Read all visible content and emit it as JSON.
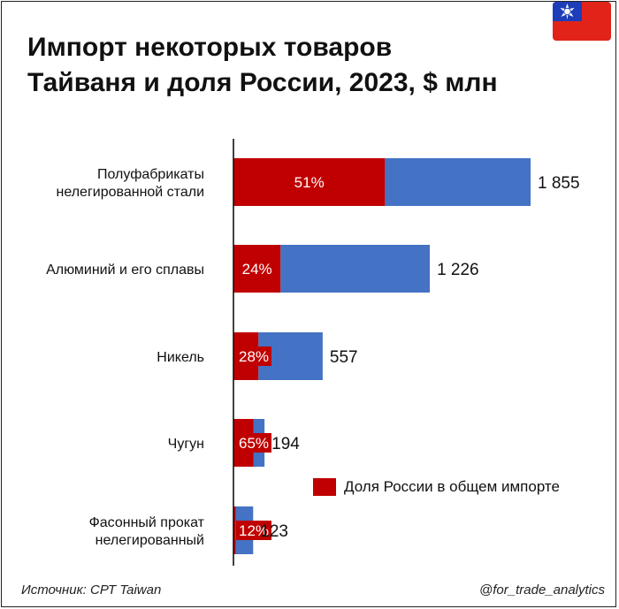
{
  "header": {
    "title_line1": "Импорт некоторых товаров",
    "title_line2": "Тайваня и доля России, 2023, $ млн"
  },
  "footer": {
    "source": "Источник: СРТ Taiwan",
    "handle": "@for_trade_analytics"
  },
  "colors": {
    "total": "#4472c4",
    "russia": "#c00000",
    "flag_red": "#e2231a",
    "flag_blue": "#1d3eb8"
  },
  "legend": {
    "russia_label": "Доля России в общем импорте"
  },
  "chart_data": {
    "type": "bar",
    "orientation": "horizontal",
    "stacked": true,
    "title": "Импорт некоторых товаров Тайваня и доля России, 2023, $ млн",
    "categories": [
      [
        "Полуфабрикаты",
        "нелегированной стали"
      ],
      [
        "Алюминий и его сплавы"
      ],
      [
        "Никель"
      ],
      [
        "Чугун"
      ],
      [
        "Фасонный прокат",
        "нелегированный"
      ]
    ],
    "total_labels": [
      "1 855",
      "1 226",
      "557",
      "194",
      "123"
    ],
    "share_labels": [
      "51%",
      "24%",
      "28%",
      "65%",
      "12%"
    ],
    "series": [
      {
        "name": "Доля России в общем импорте",
        "values": [
          946,
          294,
          156,
          126,
          15
        ]
      },
      {
        "values": [
          909,
          932,
          401,
          68,
          108
        ]
      }
    ],
    "totals": [
      1855,
      1226,
      557,
      194,
      123
    ],
    "xlim": [
      0,
      1855
    ],
    "grid": false,
    "legend_position": "bottom-right"
  }
}
